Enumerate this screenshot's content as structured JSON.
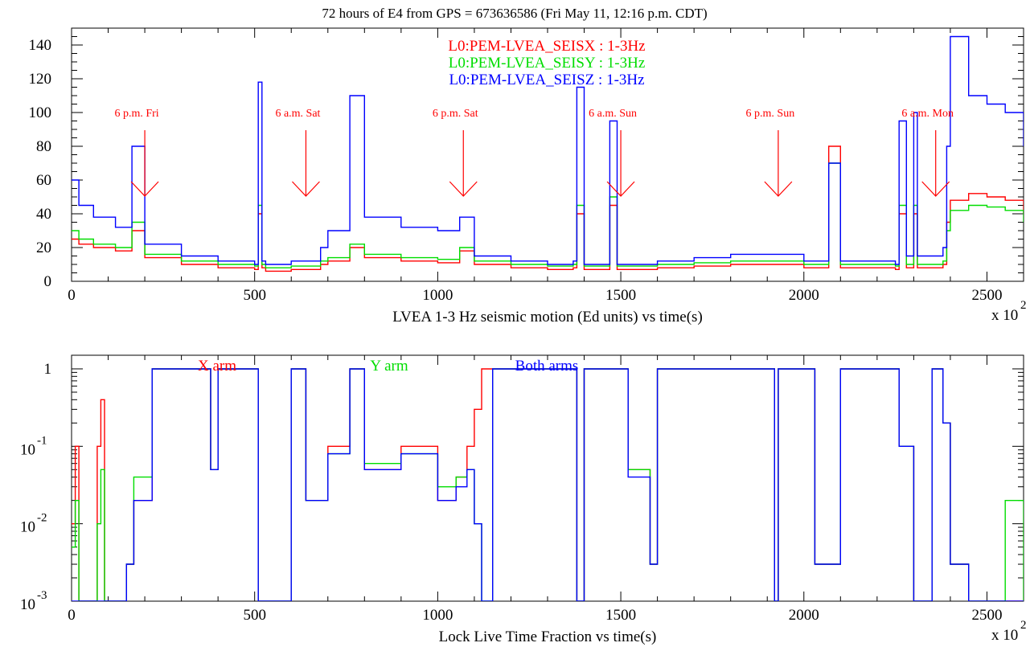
{
  "title": "72 hours of E4 from GPS = 673636586 (Fri May 11, 12:16 p.m. CDT)",
  "chart_data": [
    {
      "type": "line",
      "xlabel": "LVEA 1-3 Hz seismic motion (Ed units) vs time(s)",
      "x_multiplier": "x 10",
      "x_multiplier_exp": "2",
      "xlim": [
        0,
        2600
      ],
      "ylim": [
        0,
        150
      ],
      "x_ticks": [
        "0",
        "500",
        "1000",
        "1500",
        "2000",
        "2500"
      ],
      "x_tick_values": [
        0,
        500,
        1000,
        1500,
        2000,
        2500
      ],
      "y_ticks": [
        "0",
        "20",
        "40",
        "60",
        "80",
        "100",
        "120",
        "140"
      ],
      "y_tick_values": [
        0,
        20,
        40,
        60,
        80,
        100,
        120,
        140
      ],
      "series": [
        {
          "name": "L0:PEM-LVEA_SEISX : 1-3Hz",
          "color": "#ff0000",
          "x": [
            0,
            20,
            60,
            120,
            165,
            200,
            300,
            400,
            500,
            510,
            520,
            530,
            600,
            680,
            700,
            760,
            800,
            900,
            1000,
            1060,
            1100,
            1200,
            1300,
            1370,
            1380,
            1400,
            1460,
            1470,
            1490,
            1600,
            1700,
            1800,
            1900,
            2000,
            2068,
            2100,
            2200,
            2250,
            2260,
            2280,
            2300,
            2310,
            2330,
            2350,
            2380,
            2390,
            2400,
            2450,
            2500,
            2550,
            2600
          ],
          "y": [
            25,
            22,
            20,
            18,
            30,
            14,
            10,
            8,
            7,
            40,
            8,
            6,
            7,
            10,
            12,
            20,
            14,
            12,
            11,
            18,
            10,
            8,
            7,
            8,
            40,
            7,
            7,
            45,
            7,
            8,
            9,
            10,
            10,
            8,
            80,
            8,
            8,
            7,
            40,
            8,
            40,
            8,
            8,
            8,
            10,
            35,
            48,
            52,
            50,
            48,
            40
          ]
        },
        {
          "name": "L0:PEM-LVEA_SEISY : 1-3Hz",
          "color": "#00dd00",
          "x": [
            0,
            20,
            60,
            120,
            165,
            200,
            300,
            400,
            500,
            510,
            520,
            530,
            600,
            680,
            700,
            760,
            800,
            900,
            1000,
            1060,
            1100,
            1200,
            1300,
            1370,
            1380,
            1400,
            1460,
            1470,
            1490,
            1600,
            1700,
            1800,
            1900,
            2000,
            2068,
            2100,
            2200,
            2250,
            2260,
            2280,
            2300,
            2310,
            2330,
            2350,
            2380,
            2390,
            2400,
            2450,
            2500,
            2550,
            2600
          ],
          "y": [
            30,
            25,
            22,
            20,
            35,
            16,
            12,
            10,
            9,
            45,
            10,
            8,
            9,
            12,
            14,
            22,
            16,
            14,
            13,
            20,
            12,
            10,
            9,
            10,
            45,
            9,
            9,
            50,
            9,
            10,
            11,
            12,
            12,
            10,
            70,
            10,
            10,
            9,
            45,
            10,
            45,
            10,
            10,
            10,
            12,
            30,
            42,
            45,
            44,
            42,
            35
          ]
        },
        {
          "name": "L0:PEM-LVEA_SEISZ : 1-3Hz",
          "color": "#0000ff",
          "x": [
            0,
            20,
            60,
            120,
            165,
            200,
            300,
            400,
            500,
            510,
            520,
            530,
            600,
            680,
            700,
            760,
            800,
            900,
            1000,
            1060,
            1100,
            1200,
            1300,
            1370,
            1380,
            1400,
            1460,
            1470,
            1490,
            1600,
            1700,
            1800,
            1900,
            2000,
            2068,
            2100,
            2200,
            2250,
            2260,
            2280,
            2300,
            2310,
            2330,
            2350,
            2380,
            2390,
            2400,
            2450,
            2500,
            2550,
            2600
          ],
          "y": [
            60,
            45,
            38,
            32,
            80,
            22,
            15,
            12,
            10,
            118,
            12,
            10,
            12,
            20,
            30,
            110,
            38,
            32,
            30,
            38,
            15,
            12,
            10,
            12,
            115,
            10,
            10,
            95,
            10,
            12,
            14,
            16,
            16,
            12,
            70,
            12,
            12,
            10,
            95,
            15,
            100,
            15,
            15,
            15,
            20,
            80,
            145,
            110,
            105,
            100,
            80
          ]
        }
      ],
      "annotations": [
        {
          "text": "6 p.m. Fri",
          "x": 200
        },
        {
          "text": "6 a.m. Sat",
          "x": 640
        },
        {
          "text": "6 p.m. Sat",
          "x": 1070
        },
        {
          "text": "6 a.m. Sun",
          "x": 1500
        },
        {
          "text": "6 p.m. Sun",
          "x": 1930
        },
        {
          "text": "6 a.m. Mon",
          "x": 2360
        }
      ],
      "legend_position": "top-center",
      "grid": false
    },
    {
      "type": "line",
      "yscale": "log",
      "xlabel": "Lock Live Time Fraction vs time(s)",
      "x_multiplier": "x 10",
      "x_multiplier_exp": "2",
      "xlim": [
        0,
        2600
      ],
      "ylim": [
        0.001,
        1.5
      ],
      "x_ticks": [
        "0",
        "500",
        "1000",
        "1500",
        "2000",
        "2500"
      ],
      "x_tick_values": [
        0,
        500,
        1000,
        1500,
        2000,
        2500
      ],
      "y_ticks": [
        {
          "base": "10",
          "exp": "-3",
          "value": 0.001
        },
        {
          "base": "10",
          "exp": "-2",
          "value": 0.01
        },
        {
          "base": "10",
          "exp": "-1",
          "value": 0.1
        },
        {
          "base": "1",
          "exp": "",
          "value": 1
        }
      ],
      "series": [
        {
          "name": "X arm",
          "color": "#ff0000",
          "x": [
            0,
            10,
            20,
            30,
            70,
            80,
            90,
            150,
            170,
            220,
            240,
            300,
            380,
            400,
            500,
            510,
            600,
            640,
            700,
            760,
            800,
            900,
            1000,
            1050,
            1080,
            1100,
            1120,
            1150,
            1200,
            1300,
            1370,
            1380,
            1400,
            1500,
            1520,
            1580,
            1600,
            1700,
            1800,
            1900,
            1920,
            1930,
            2000,
            2030,
            2100,
            2200,
            2260,
            2300,
            2350,
            2380,
            2400,
            2450,
            2500,
            2550,
            2600
          ],
          "y": [
            0.01,
            0.1,
            0.001,
            0.001,
            0.1,
            0.4,
            0.001,
            0.003,
            0.02,
            1,
            1,
            1,
            0.05,
            1,
            1,
            0.001,
            1,
            0.02,
            0.1,
            1,
            0.05,
            0.1,
            0.02,
            0.04,
            0.1,
            0.3,
            1,
            1,
            1,
            1,
            1,
            0.001,
            1,
            1,
            0.05,
            0.003,
            1,
            1,
            1,
            1,
            0.001,
            1,
            1,
            0.003,
            1,
            1,
            0.1,
            0.001,
            1,
            0.2,
            0.003,
            0.001,
            0.001,
            0.001,
            0.001
          ]
        },
        {
          "name": "Y arm",
          "color": "#00dd00",
          "x": [
            0,
            10,
            20,
            30,
            70,
            80,
            90,
            150,
            170,
            220,
            240,
            300,
            380,
            400,
            500,
            510,
            600,
            640,
            700,
            760,
            800,
            900,
            1000,
            1050,
            1080,
            1100,
            1120,
            1150,
            1200,
            1300,
            1370,
            1380,
            1400,
            1500,
            1520,
            1580,
            1600,
            1700,
            1800,
            1900,
            1920,
            1930,
            2000,
            2030,
            2100,
            2200,
            2260,
            2300,
            2350,
            2380,
            2400,
            2450,
            2500,
            2550,
            2600
          ],
          "y": [
            0.005,
            0.02,
            0.001,
            0.001,
            0.01,
            0.05,
            0.001,
            0.003,
            0.04,
            1,
            1,
            1,
            0.05,
            1,
            1,
            0.001,
            1,
            0.02,
            0.08,
            1,
            0.06,
            0.08,
            0.03,
            0.04,
            0.05,
            0.01,
            0.001,
            1,
            1,
            1,
            1,
            0.001,
            1,
            1,
            0.05,
            0.003,
            1,
            1,
            1,
            1,
            0.001,
            1,
            1,
            0.003,
            1,
            1,
            0.1,
            0.001,
            1,
            0.2,
            0.003,
            0.001,
            0.001,
            0.02,
            0.001
          ]
        },
        {
          "name": "Both arms",
          "color": "#0000ff",
          "x": [
            0,
            10,
            20,
            30,
            70,
            80,
            90,
            150,
            170,
            220,
            240,
            300,
            380,
            400,
            500,
            510,
            600,
            640,
            700,
            760,
            800,
            900,
            1000,
            1050,
            1080,
            1100,
            1120,
            1150,
            1200,
            1300,
            1370,
            1380,
            1400,
            1500,
            1520,
            1580,
            1600,
            1700,
            1800,
            1900,
            1920,
            1930,
            2000,
            2030,
            2100,
            2200,
            2260,
            2300,
            2350,
            2380,
            2400,
            2450,
            2500,
            2550,
            2600
          ],
          "y": [
            0.001,
            0.001,
            0.001,
            0.001,
            0.001,
            0.001,
            0.001,
            0.003,
            0.02,
            1,
            1,
            1,
            0.05,
            1,
            1,
            0.001,
            1,
            0.02,
            0.08,
            1,
            0.05,
            0.08,
            0.02,
            0.03,
            0.05,
            0.01,
            0.001,
            1,
            1,
            1,
            1,
            0.001,
            1,
            1,
            0.04,
            0.003,
            1,
            1,
            1,
            1,
            0.001,
            1,
            1,
            0.003,
            1,
            1,
            0.1,
            0.001,
            1,
            0.2,
            0.003,
            0.001,
            0.001,
            0.001,
            0.001
          ]
        }
      ],
      "legend_position": "top",
      "grid": false
    }
  ]
}
